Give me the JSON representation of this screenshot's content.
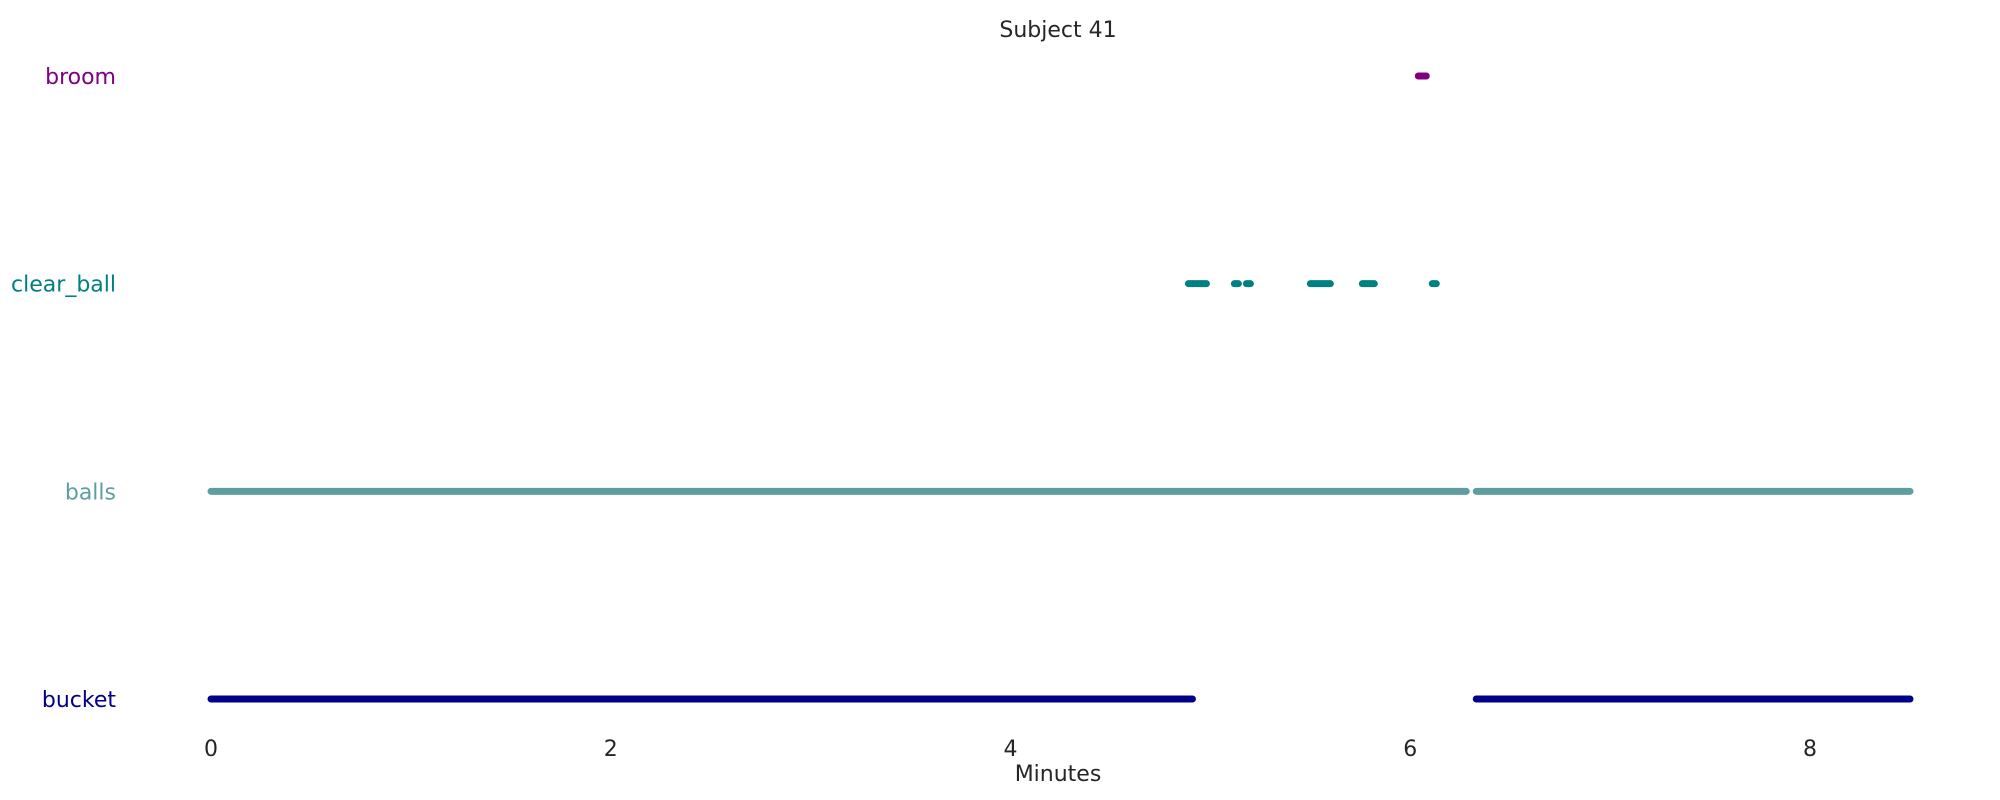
{
  "chart_data": {
    "type": "timeline",
    "title": "Subject 41",
    "xlabel": "Minutes",
    "ylabel": "",
    "xlim": [
      0,
      8.5
    ],
    "xticks": [
      0,
      2,
      4,
      6,
      8
    ],
    "grid": false,
    "legend": "none",
    "series": [
      {
        "name": "broom",
        "color": "#800080",
        "segments": [
          [
            6.04,
            6.08
          ]
        ]
      },
      {
        "name": "clear_ball",
        "color": "#008080",
        "segments": [
          [
            4.89,
            4.92
          ],
          [
            4.93,
            4.98
          ],
          [
            5.12,
            5.14
          ],
          [
            5.18,
            5.2
          ],
          [
            5.5,
            5.6
          ],
          [
            5.76,
            5.82
          ],
          [
            6.11,
            6.13
          ]
        ]
      },
      {
        "name": "balls",
        "color": "#5f9ea0",
        "segments": [
          [
            0,
            6.28
          ],
          [
            6.33,
            8.5
          ]
        ]
      },
      {
        "name": "bucket",
        "color": "#00008b",
        "segments": [
          [
            0,
            4.91
          ],
          [
            6.33,
            8.5
          ]
        ]
      }
    ]
  }
}
